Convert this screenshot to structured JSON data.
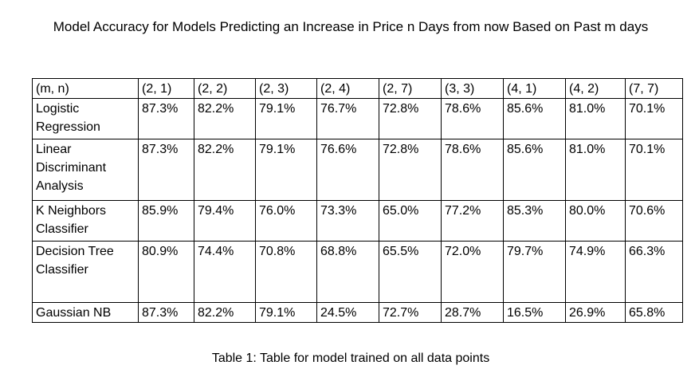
{
  "title": "Model Accuracy for Models Predicting an Increase in Price n Days from now Based on Past m days",
  "table": {
    "header": [
      "(m, n)",
      "(2, 1)",
      "(2, 2)",
      "(2, 3)",
      "(2, 4)",
      "(2, 7)",
      "(3, 3)",
      "(4, 1)",
      "(4, 2)",
      "(7, 7)"
    ],
    "rows": [
      {
        "model": "Logistic Regression",
        "values": [
          "87.3%",
          "82.2%",
          "79.1%",
          "76.7%",
          "72.8%",
          "78.6%",
          "85.6%",
          "81.0%",
          "70.1%"
        ]
      },
      {
        "model": "Linear Discriminant Analysis",
        "values": [
          "87.3%",
          "82.2%",
          "79.1%",
          "76.6%",
          "72.8%",
          "78.6%",
          "85.6%",
          "81.0%",
          "70.1%"
        ]
      },
      {
        "model": "K Neighbors Classifier",
        "values": [
          "85.9%",
          "79.4%",
          "76.0%",
          "73.3%",
          "65.0%",
          "77.2%",
          "85.3%",
          "80.0%",
          "70.6%"
        ]
      },
      {
        "model": "Decision Tree Classifier",
        "values": [
          "80.9%",
          "74.4%",
          "70.8%",
          "68.8%",
          "65.5%",
          "72.0%",
          "79.7%",
          "74.9%",
          "66.3%"
        ]
      },
      {
        "model": "Gaussian NB",
        "values": [
          "87.3%",
          "82.2%",
          "79.1%",
          "24.5%",
          "72.7%",
          "28.7%",
          "16.5%",
          "26.9%",
          "65.8%"
        ]
      }
    ]
  },
  "caption": "Table 1: Table for model trained on all data points"
}
